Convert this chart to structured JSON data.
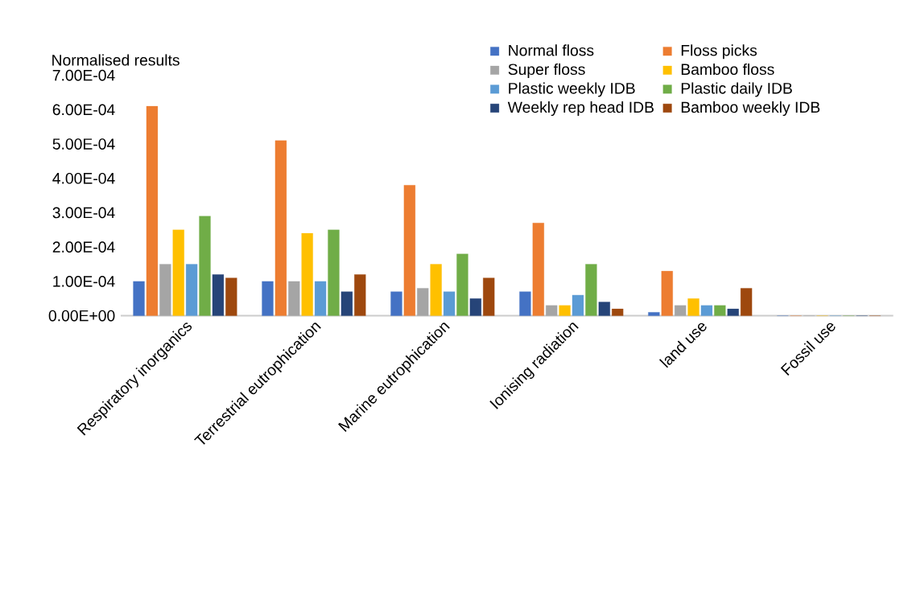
{
  "chart_data": {
    "type": "bar",
    "ylabel": "Normalised results",
    "categories": [
      "Respiratory inorganics",
      "Terrestrial eutrophication",
      "Marine eutrophication",
      "Ionising radiation",
      "land use",
      "Fossil use"
    ],
    "series": [
      {
        "name": "Normal floss",
        "color": "#4472c4",
        "values": [
          0.0001,
          0.0001,
          7e-05,
          7e-05,
          1e-05,
          0
        ]
      },
      {
        "name": "Floss picks",
        "color": "#ed7d31",
        "values": [
          0.00061,
          0.00051,
          0.00038,
          0.00027,
          0.00013,
          0
        ]
      },
      {
        "name": "Super floss",
        "color": "#a5a5a5",
        "values": [
          0.00015,
          0.0001,
          8e-05,
          3e-05,
          3e-05,
          0
        ]
      },
      {
        "name": "Bamboo floss",
        "color": "#ffc000",
        "values": [
          0.00025,
          0.00024,
          0.00015,
          3e-05,
          5e-05,
          0
        ]
      },
      {
        "name": "Plastic weekly IDB",
        "color": "#5b9bd5",
        "values": [
          0.00015,
          0.0001,
          7e-05,
          6e-05,
          3e-05,
          0
        ]
      },
      {
        "name": "Plastic daily IDB",
        "color": "#70ad47",
        "values": [
          0.00029,
          0.00025,
          0.00018,
          0.00015,
          3e-05,
          0
        ]
      },
      {
        "name": "Weekly rep head IDB",
        "color": "#264478",
        "values": [
          0.00012,
          7e-05,
          5e-05,
          4e-05,
          2e-05,
          0
        ]
      },
      {
        "name": "Bamboo weekly IDB",
        "color": "#9e480e",
        "values": [
          0.00011,
          0.00012,
          0.00011,
          2e-05,
          8e-05,
          0
        ]
      }
    ],
    "ylim": [
      0,
      0.0007
    ],
    "yticks": [
      {
        "value": 0,
        "label": "0.00E+00"
      },
      {
        "value": 0.0001,
        "label": "1.00E-04"
      },
      {
        "value": 0.0002,
        "label": "2.00E-04"
      },
      {
        "value": 0.0003,
        "label": "3.00E-04"
      },
      {
        "value": 0.0004,
        "label": "4.00E-04"
      },
      {
        "value": 0.0005,
        "label": "5.00E-04"
      },
      {
        "value": 0.0006,
        "label": "6.00E-04"
      },
      {
        "value": 0.0007,
        "label": "7.00E-04"
      }
    ],
    "legend": "top right",
    "grid": false
  }
}
